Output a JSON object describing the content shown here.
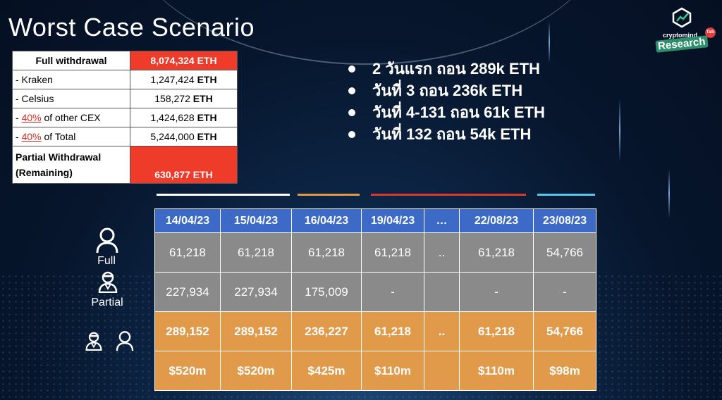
{
  "title": "Worst Case Scenario",
  "logo": {
    "small": "cryptomind",
    "brand": "Research",
    "tag": "Talk"
  },
  "withdrawal_table": {
    "full_label": "Full withdrawal",
    "full_value": "8,074,324 ETH",
    "rows": [
      {
        "label": "- Kraken",
        "num": "1,247,424",
        "unit": "ETH"
      },
      {
        "label": "- Celsius",
        "num": "158,272",
        "unit": "ETH"
      },
      {
        "prefix": "- ",
        "pct": "40%",
        "suffix": " of other CEX",
        "num": "1,424,628",
        "unit": "ETH"
      },
      {
        "prefix": "- ",
        "pct": "40%",
        "suffix": " of Total",
        "num": "5,244,000",
        "unit": "ETH"
      }
    ],
    "partial_label_1": "Partial Withdrawal",
    "partial_label_2": "(Remaining)",
    "partial_value": "630,877 ETH"
  },
  "bullets": [
    "2 วันแรก ถอน 289k ETH",
    "วันที่ 3 ถอน 236k ETH",
    "วันที่ 4-131 ถอน 61k ETH",
    "วันที่ 132 ถอน 54k ETH"
  ],
  "colors": {
    "white_bar": "#ffffff",
    "orange_bar": "#e09a4a",
    "red_bar": "#d93a2b",
    "blue_bar": "#5bc6e8"
  },
  "schedule": {
    "headers": [
      "14/04/23",
      "15/04/23",
      "16/04/23",
      "19/04/23",
      "…",
      "22/08/23",
      "23/08/23"
    ],
    "full_row": [
      "61,218",
      "61,218",
      "61,218",
      "61,218",
      "..",
      "61,218",
      "54,766"
    ],
    "partial_row": [
      "227,934",
      "227,934",
      "175,009",
      "-",
      "",
      "-",
      "-"
    ],
    "total_row": [
      "289,152",
      "289,152",
      "236,227",
      "61,218",
      "..",
      "61,218",
      "54,766"
    ],
    "usd_row": [
      "$520m",
      "$520m",
      "$425m",
      "$110m",
      "",
      "$110m",
      "$98m"
    ]
  },
  "row_labels": {
    "full": "Full",
    "partial": "Partial"
  }
}
